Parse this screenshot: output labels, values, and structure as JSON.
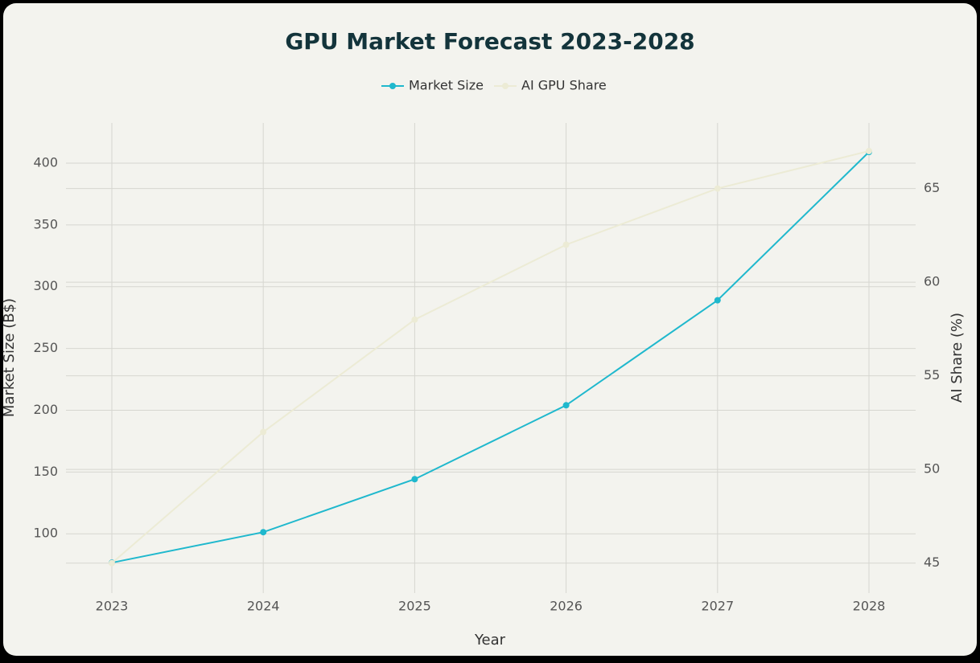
{
  "chart_data": {
    "type": "line",
    "title": "GPU Market Forecast 2023-2028",
    "x_label": "Year",
    "y_label": "Market Size (B$)",
    "y2_label": "AI Share (%)",
    "categories": [
      "2023",
      "2024",
      "2025",
      "2026",
      "2027",
      "2028"
    ],
    "series": [
      {
        "name": "Market Size",
        "color": "#1fb8cd",
        "values": [
          76.6,
          101.3,
          144.2,
          204,
          289,
          409
        ]
      },
      {
        "name": "AI GPU Share",
        "color": "#ecebd5",
        "axis": "y2",
        "values": [
          45,
          52,
          58,
          62,
          65,
          67
        ]
      }
    ],
    "ylim": [
      52,
      432.5
    ],
    "yticks": [
      100,
      150,
      200,
      250,
      300,
      350,
      400
    ],
    "y2lim": [
      43.4,
      68.5
    ],
    "y2ticks": [
      45,
      50,
      55,
      60,
      65
    ],
    "grid": true,
    "legend": "top"
  }
}
